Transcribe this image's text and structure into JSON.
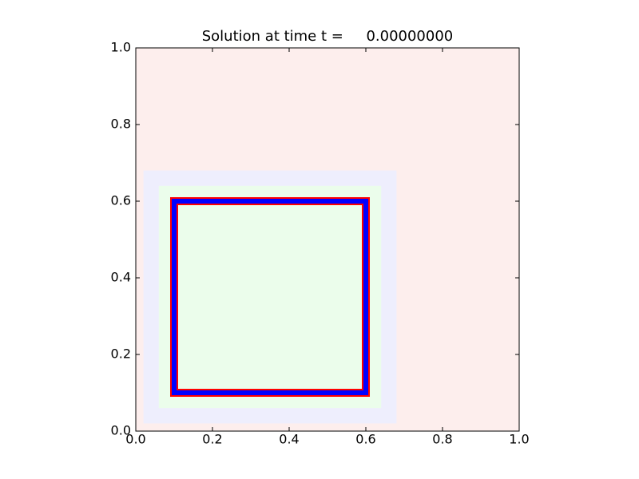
{
  "chart_data": {
    "type": "patches",
    "title": "Solution at time t =     0.00000000",
    "xlim": [
      0,
      1
    ],
    "ylim": [
      0,
      1
    ],
    "xticks": [
      {
        "value": 0,
        "label": "0.0"
      },
      {
        "value": 0.2,
        "label": "0.2"
      },
      {
        "value": 0.4,
        "label": "0.4"
      },
      {
        "value": 0.6,
        "label": "0.6"
      },
      {
        "value": 0.8,
        "label": "0.8"
      },
      {
        "value": 1,
        "label": "1.0"
      }
    ],
    "yticks": [
      {
        "value": 0,
        "label": "0.0"
      },
      {
        "value": 0.2,
        "label": "0.2"
      },
      {
        "value": 0.4,
        "label": "0.4"
      },
      {
        "value": 0.6,
        "label": "0.6"
      },
      {
        "value": 0.8,
        "label": "0.8"
      },
      {
        "value": 1,
        "label": "1.0"
      }
    ],
    "patches": [
      {
        "x": [
          0,
          1
        ],
        "y": [
          0,
          1
        ],
        "color": "#fdeeed"
      },
      {
        "x": [
          0.02,
          0.68
        ],
        "y": [
          0.02,
          0.68
        ],
        "color": "#eeeefd"
      },
      {
        "x": [
          0.06,
          0.64
        ],
        "y": [
          0.06,
          0.64
        ],
        "color": "#ebfdeb"
      },
      {
        "x": [
          0.1,
          0.6
        ],
        "y": [
          0.1,
          0.6
        ],
        "color": "#0000ff",
        "edgecolor": "#ff0000",
        "outline": true
      }
    ]
  }
}
